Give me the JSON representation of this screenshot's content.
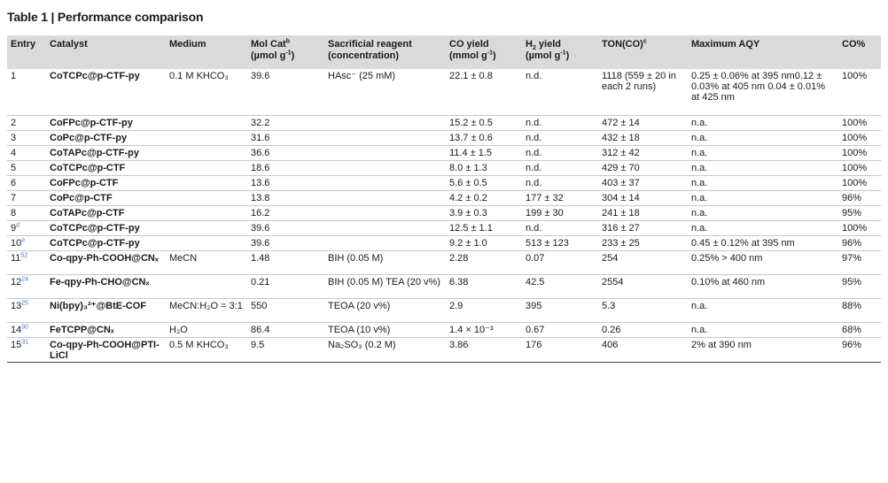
{
  "title": "Table 1 | Performance comparison",
  "headers": {
    "entry": "Entry",
    "catalyst": "Catalyst",
    "medium": "Medium",
    "molcat": "Mol Cat",
    "molcat_sup": "b",
    "molcat_unit_a": "(µmol g",
    "molcat_unit_sup": "-1",
    "molcat_unit_b": ")",
    "sacr_a": "Sacrificial reagent",
    "sacr_b": "(concentration)",
    "co_a": "CO yield",
    "co_b": "(mmol g",
    "co_sup": "-1",
    "co_c": ")",
    "h2_a": "H",
    "h2_sub": "2",
    "h2_b": " yield",
    "h2_c": "(µmol g",
    "h2_sup": "-1",
    "h2_d": ")",
    "ton": "TON(CO)",
    "ton_sup": "c",
    "aqy": "Maximum AQY",
    "copct": "CO%"
  },
  "rows": [
    {
      "entry": "1",
      "entry_sup": "",
      "catalyst": "CoTCPc@p-CTF-py",
      "medium": "0.1 M KHCO₃",
      "molcat": "39.6",
      "sacr": "HAsc⁻ (25 mM)",
      "co": "22.1 ± 0.8",
      "h2": "n.d.",
      "ton": "1118 (559 ± 20 in each 2 runs)",
      "aqy": "0.25 ± 0.06% at 395 nm0.12 ± 0.03% at 405 nm 0.04 ± 0.01% at 425 nm",
      "copct": "100%"
    },
    {
      "entry": "2",
      "entry_sup": "",
      "catalyst": "CoFPc@p-CTF-py",
      "medium": "",
      "molcat": "32.2",
      "sacr": "",
      "co": "15.2 ± 0.5",
      "h2": "n.d.",
      "ton": "472 ± 14",
      "aqy": "n.a.",
      "copct": "100%"
    },
    {
      "entry": "3",
      "entry_sup": "",
      "catalyst": "CoPc@p-CTF-py",
      "medium": "",
      "molcat": "31.6",
      "sacr": "",
      "co": "13.7 ± 0.6",
      "h2": "n.d.",
      "ton": "432 ± 18",
      "aqy": "n.a.",
      "copct": "100%"
    },
    {
      "entry": "4",
      "entry_sup": "",
      "catalyst": "CoTAPc@p-CTF-py",
      "medium": "",
      "molcat": "36.6",
      "sacr": "",
      "co": "11.4 ± 1.5",
      "h2": "n.d.",
      "ton": "312 ± 42",
      "aqy": "n.a.",
      "copct": "100%"
    },
    {
      "entry": "5",
      "entry_sup": "",
      "catalyst": "CoTCPc@p-CTF",
      "medium": "",
      "molcat": "18.6",
      "sacr": "",
      "co": "8.0 ± 1.3",
      "h2": "n.d.",
      "ton": "429 ± 70",
      "aqy": "n.a.",
      "copct": "100%"
    },
    {
      "entry": "6",
      "entry_sup": "",
      "catalyst": "CoFPc@p-CTF",
      "medium": "",
      "molcat": "13.6",
      "sacr": "",
      "co": "5.6 ± 0.5",
      "h2": "n.d.",
      "ton": "403 ± 37",
      "aqy": "n.a.",
      "copct": "100%"
    },
    {
      "entry": "7",
      "entry_sup": "",
      "catalyst": "CoPc@p-CTF",
      "medium": "",
      "molcat": "13.8",
      "sacr": "",
      "co": "4.2 ± 0.2",
      "h2": "177 ± 32",
      "ton": "304 ± 14",
      "aqy": "n.a.",
      "copct": "96%"
    },
    {
      "entry": "8",
      "entry_sup": "",
      "catalyst": "CoTAPc@p-CTF",
      "medium": "",
      "molcat": "16.2",
      "sacr": "",
      "co": "3.9 ± 0.3",
      "h2": "199 ± 30",
      "ton": "241 ± 18",
      "aqy": "n.a.",
      "copct": "95%"
    },
    {
      "entry": "9",
      "entry_sup": "d",
      "catalyst": "CoTCPc@p-CTF-py",
      "medium": "",
      "molcat": "39.6",
      "sacr": "",
      "co": "12.5 ± 1.1",
      "h2": "n.d.",
      "ton": "316 ± 27",
      "aqy": "n.a.",
      "copct": "100%"
    },
    {
      "entry": "10",
      "entry_sup": "e",
      "catalyst": "CoTCPc@p-CTF-py",
      "medium": "",
      "molcat": "39.6",
      "sacr": "",
      "co": "9.2 ± 1.0",
      "h2": "513 ± 123",
      "ton": "233 ± 25",
      "aqy": "0.45 ± 0.12% at 395 nm",
      "copct": "96%"
    },
    {
      "entry": "11",
      "entry_sup": "52",
      "catalyst": "Co-qpy-Ph-COOH@CNₓ",
      "medium": "MeCN",
      "molcat": "1.48",
      "sacr": "BIH (0.05 M)",
      "co": "2.28",
      "h2": "0.07",
      "ton": "254",
      "aqy": "0.25% > 400 nm",
      "copct": "97%"
    },
    {
      "entry": "12",
      "entry_sup": "24",
      "catalyst": "Fe-qpy-Ph-CHO@CNₓ",
      "medium": "",
      "molcat": "0.21",
      "sacr": "BIH (0.05 M) TEA (20 v%)",
      "co": "6.38",
      "h2": "42.5",
      "ton": "2554",
      "aqy": "0.10% at 460 nm",
      "copct": "95%"
    },
    {
      "entry": "13",
      "entry_sup": "25",
      "catalyst": "Ni(bpy)₃²⁺@BtE-COF",
      "medium": "MeCN:H₂O = 3:1",
      "molcat": "550",
      "sacr": "TEOA (20 v%)",
      "co": "2.9",
      "h2": "395",
      "ton": "5.3",
      "aqy": "n.a.",
      "copct": "88%"
    },
    {
      "entry": "14",
      "entry_sup": "30",
      "catalyst": "FeTCPP@CNₓ",
      "medium": "H₂O",
      "molcat": "86.4",
      "sacr": "TEOA (10 v%)",
      "co": "1.4 × 10⁻³",
      "h2": "0.67",
      "ton": "0.26",
      "aqy": "n.a.",
      "copct": "68%"
    },
    {
      "entry": "15",
      "entry_sup": "31",
      "catalyst": "Co-qpy-Ph-COOH@PTI-LiCl",
      "medium": "0.5 M KHCO₃",
      "molcat": "9.5",
      "sacr": "Na₂SO₃ (0.2 M)",
      "co": "3.86",
      "h2": "176",
      "ton": "406",
      "aqy": "2% at 390 nm",
      "copct": "96%"
    }
  ]
}
